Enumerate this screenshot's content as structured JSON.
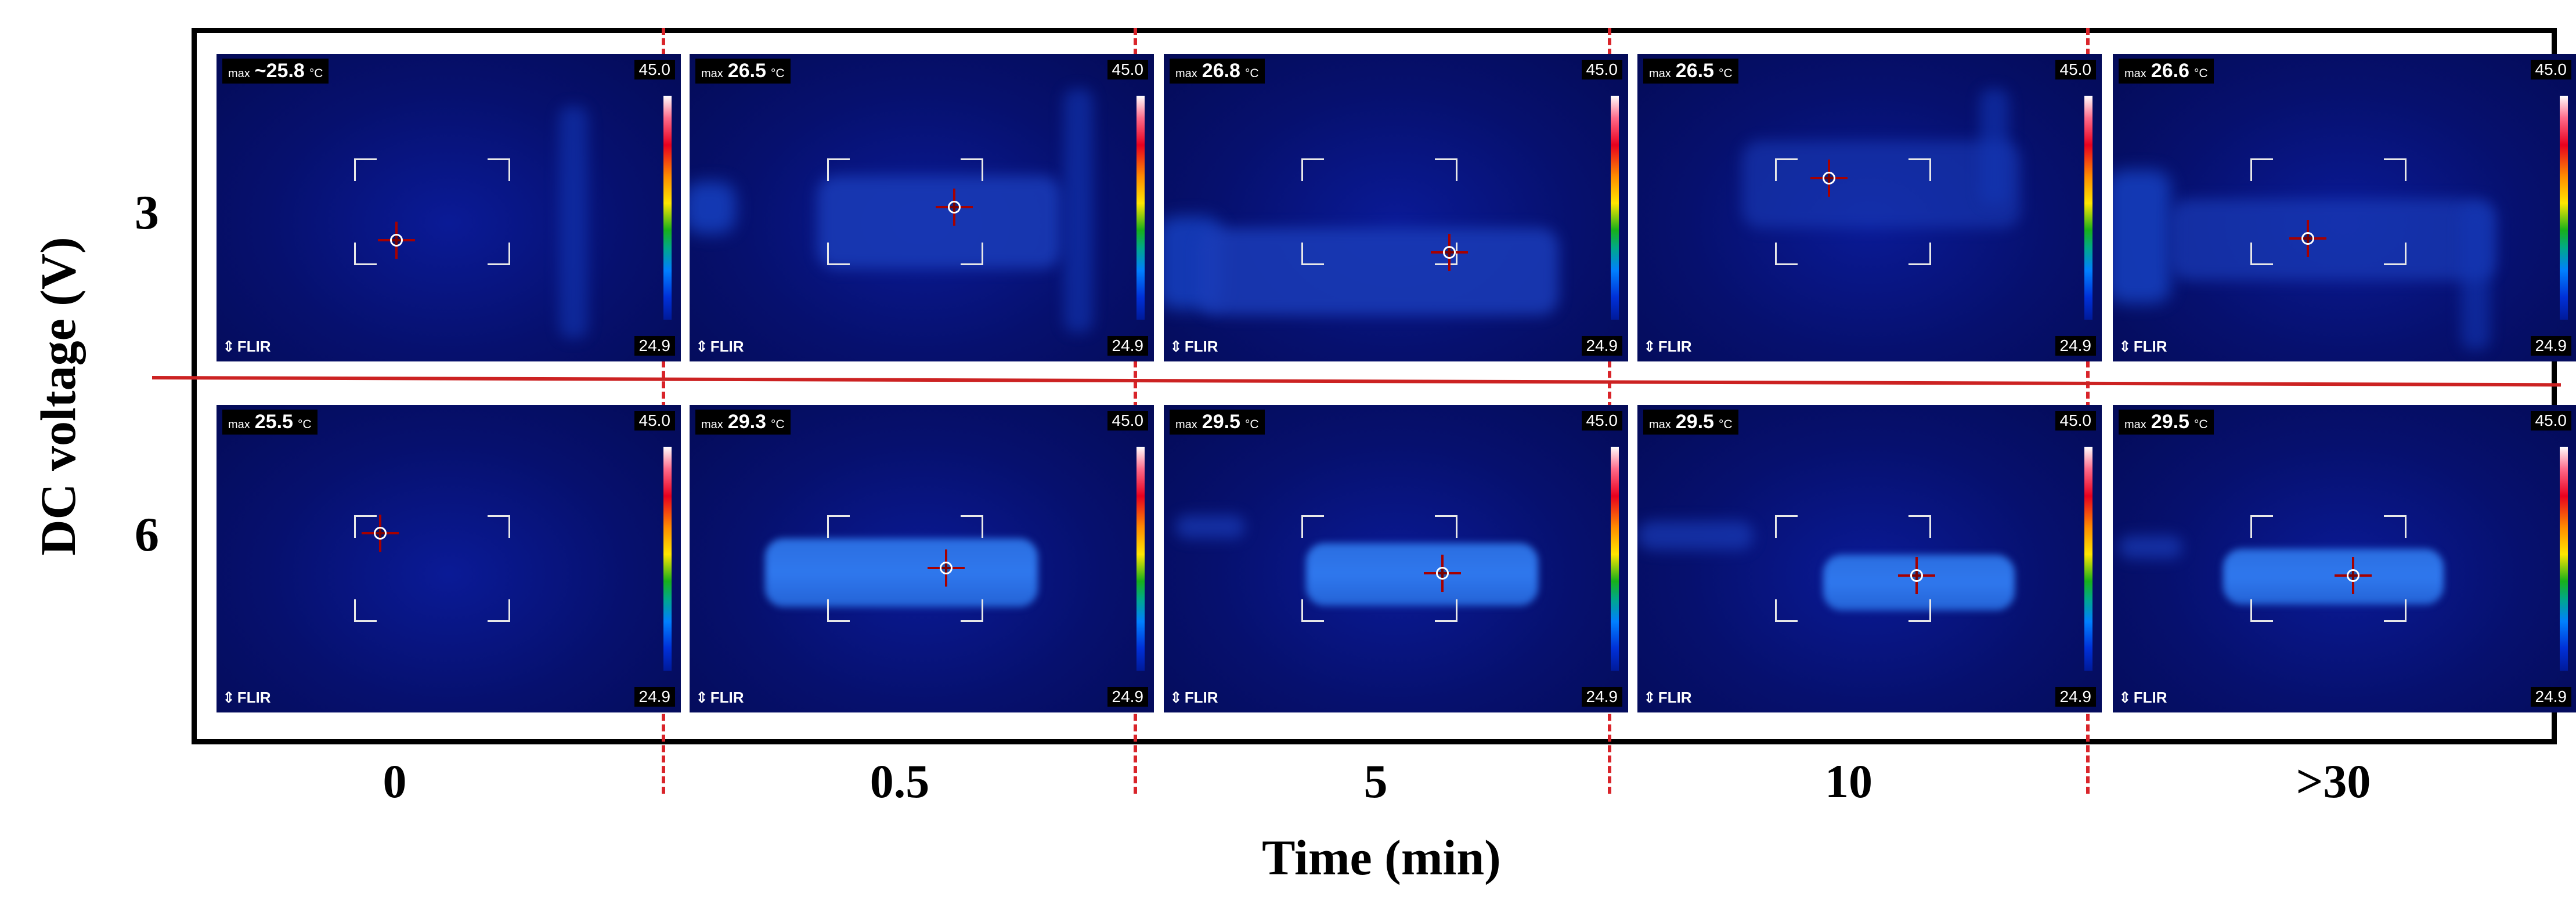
{
  "figure": {
    "y_title": "DC voltage  (V)",
    "x_title": "Time (min)",
    "rows": [
      "3",
      "6"
    ],
    "columns": [
      "0",
      "0.5",
      "5",
      "10",
      ">30"
    ]
  },
  "thermal_images": [
    {
      "voltage": "3",
      "time": "0",
      "max_prefix": "max",
      "max_value": "~25.8",
      "unit": "°C",
      "scale_max": "45.0",
      "scale_min": "24.9",
      "brand": "FLIR"
    },
    {
      "voltage": "3",
      "time": "0.5",
      "max_prefix": "max",
      "max_value": "26.5",
      "unit": "°C",
      "scale_max": "45.0",
      "scale_min": "24.9",
      "brand": "FLIR"
    },
    {
      "voltage": "3",
      "time": "5",
      "max_prefix": "max",
      "max_value": "26.8",
      "unit": "°C",
      "scale_max": "45.0",
      "scale_min": "24.9",
      "brand": "FLIR"
    },
    {
      "voltage": "3",
      "time": "10",
      "max_prefix": "max",
      "max_value": "26.5",
      "unit": "°C",
      "scale_max": "45.0",
      "scale_min": "24.9",
      "brand": "FLIR"
    },
    {
      "voltage": "3",
      "time": ">30",
      "max_prefix": "max",
      "max_value": "26.6",
      "unit": "°C",
      "scale_max": "45.0",
      "scale_min": "24.9",
      "brand": "FLIR"
    },
    {
      "voltage": "6",
      "time": "0",
      "max_prefix": "max",
      "max_value": "25.5",
      "unit": "°C",
      "scale_max": "45.0",
      "scale_min": "24.9",
      "brand": "FLIR"
    },
    {
      "voltage": "6",
      "time": "0.5",
      "max_prefix": "max",
      "max_value": "29.3",
      "unit": "°C",
      "scale_max": "45.0",
      "scale_min": "24.9",
      "brand": "FLIR"
    },
    {
      "voltage": "6",
      "time": "5",
      "max_prefix": "max",
      "max_value": "29.5",
      "unit": "°C",
      "scale_max": "45.0",
      "scale_min": "24.9",
      "brand": "FLIR"
    },
    {
      "voltage": "6",
      "time": "10",
      "max_prefix": "max",
      "max_value": "29.5",
      "unit": "°C",
      "scale_max": "45.0",
      "scale_min": "24.9",
      "brand": "FLIR"
    },
    {
      "voltage": "6",
      "time": ">30",
      "max_prefix": "max",
      "max_value": "29.5",
      "unit": "°C",
      "scale_max": "45.0",
      "scale_min": "24.9",
      "brand": "FLIR"
    }
  ],
  "colors": {
    "frame": "#000000",
    "divider": "#d9242a",
    "thermal_background": "#06106e",
    "heated_region": "#2f78ee",
    "crosshair": "#a60000"
  },
  "icons": {
    "crosshair": "crosshair-icon",
    "brand": "flir-logo-icon"
  }
}
